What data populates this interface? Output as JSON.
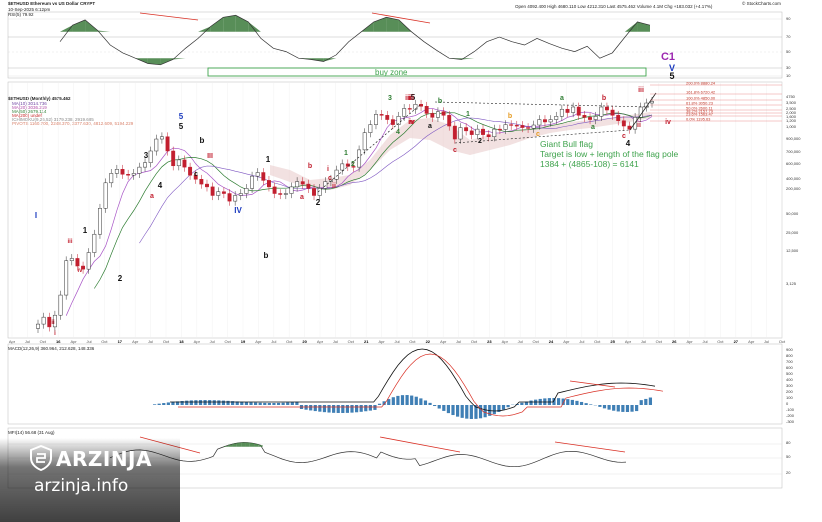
{
  "header": {
    "symbol": "$ETHUSD Ethereum vs US Dollar CRYPT",
    "date": "10-Sep-2025 6:12pm",
    "ohlc": "Open 4092.400  High 4680.110  Low 4212.310  Last 4575.462  Volume 4.1M  Chg +183.032 (+4.17%)",
    "copyright": "© StockCharts.com",
    "rsi_label": "RSI(5) 79.92",
    "main_label": "$ETHUSD (Monthly) 4575.462",
    "ma_lines": [
      "MA(10) 3014.736",
      "MA(20) 3036.219",
      "MA(50) 2679.114",
      "MA(200) undef"
    ],
    "ichimoku": "ICHIMOKU(9,26,52) 3179.238, 2919.685",
    "fib_line": "PIVOTS 1160.700, 2248.370, 3377.630, 4812.609, 5194.229",
    "macd_label": "MACD(12,26,9) 360.964, 212.628, 148.336",
    "mfi_label": "MFI(14) 56.68 (31 Aug)"
  },
  "annotations": {
    "buy_zone": "buy zone",
    "flag_title": "Giant Bull flag",
    "flag_line2": "Target is low + length of the flag pole",
    "flag_line3": "1384 + (4865-108) = 6141"
  },
  "wave_labels": [
    "I",
    "i",
    "ii",
    "iii",
    "iv",
    "1",
    "2",
    "3",
    "4",
    "5",
    "a",
    "b",
    "c",
    "III",
    "5",
    "b",
    "a",
    "c",
    "IV",
    "1",
    "2",
    "a",
    "b",
    "c",
    "i",
    "ii",
    "iii",
    "iv",
    "1",
    "2",
    "3",
    "4",
    "5",
    "3",
    "iii",
    "iv",
    "a",
    "b",
    "c",
    "1",
    "2",
    "b",
    "a",
    "c",
    "4",
    "a",
    "b",
    "c",
    "i",
    "ii",
    "iii",
    "iv",
    "C1",
    "V",
    "5"
  ],
  "x_axis": [
    "Apr",
    "Jul",
    "Oct",
    "16",
    "Apr",
    "Jul",
    "Oct",
    "17",
    "Apr",
    "Jul",
    "Oct",
    "18",
    "Apr",
    "Jul",
    "Oct",
    "19",
    "Apr",
    "Jul",
    "Oct",
    "20",
    "Apr",
    "Jul",
    "Oct",
    "21",
    "Apr",
    "Jul",
    "Oct",
    "22",
    "Apr",
    "Jul",
    "Oct",
    "23",
    "Apr",
    "Jul",
    "Oct",
    "24",
    "Apr",
    "Jul",
    "Oct",
    "25",
    "Apr",
    "Jul",
    "Oct",
    "26",
    "Apr",
    "Jul",
    "Oct",
    "27",
    "Apr",
    "Jul",
    "Oct"
  ],
  "price_axis": [
    "4750",
    "3,500",
    "2,500",
    "2,000",
    "1,600",
    "1,200",
    "1,000",
    "900,000",
    "700,000",
    "600,000",
    "400,000",
    "200,000",
    "50,000",
    "25,000",
    "12,500",
    "3,125"
  ],
  "rsi_axis": [
    "90",
    "70",
    "50",
    "30",
    "10"
  ],
  "macd_axis": [
    "900",
    "800",
    "700",
    "600",
    "500",
    "400",
    "300",
    "200",
    "100",
    "0",
    "-100",
    "-200",
    "-300"
  ],
  "mfi_axis": [
    "80",
    "50",
    "20"
  ],
  "fib_levels": [
    "200.0% 8880.24",
    "161.8% 6720.42",
    "100.0% 4850.00",
    "61.8% 3050.23",
    "50.0% 2600.11",
    "38.2% 2157.79",
    "23.6% 1563.47",
    "0.0% 1195.63"
  ],
  "chart_data": {
    "type": "candlestick",
    "title": "$ETHUSD (Monthly)",
    "log_scale": true,
    "price_values": [
      1.0,
      1.3,
      0.9,
      1.4,
      3,
      11,
      12,
      9,
      8,
      15,
      30,
      80,
      210,
      300,
      350,
      290,
      280,
      300,
      380,
      450,
      700,
      1100,
      1200,
      700,
      400,
      500,
      380,
      280,
      240,
      200,
      180,
      130,
      150,
      140,
      105,
      130,
      140,
      170,
      270,
      310,
      230,
      180,
      140,
      135,
      140,
      180,
      220,
      200,
      170,
      130,
      170,
      220,
      240,
      340,
      430,
      390,
      380,
      730,
      1400,
      1900,
      2800,
      2700,
      2300,
      1900,
      2600,
      3500,
      3400,
      4100,
      3800,
      2900,
      2500,
      3100,
      2700,
      1800,
      1100,
      1700,
      1500,
      1300,
      1600,
      1300,
      1200,
      1600,
      1580,
      1900,
      1850,
      1840,
      1700,
      1650,
      1870,
      2300,
      2100,
      2300,
      2600,
      3400,
      3000,
      3700,
      2700,
      2500,
      2300,
      2600,
      3700,
      3300,
      2700,
      2200,
      1800,
      1600,
      2500,
      3700,
      4300,
      4575
    ],
    "rsi_values": [
      55,
      80,
      88,
      72,
      50,
      38,
      30,
      22,
      20,
      28,
      45,
      60,
      78,
      92,
      95,
      85,
      60,
      45,
      40,
      30,
      28,
      25,
      35,
      55,
      70,
      85,
      92,
      88,
      70,
      55,
      42,
      30,
      28,
      40,
      55,
      62,
      55,
      50,
      60,
      52,
      45,
      40,
      48,
      30,
      38,
      62,
      85,
      80
    ]
  },
  "watermark": {
    "name": "ARZINJA",
    "url": "arzinja.info"
  }
}
